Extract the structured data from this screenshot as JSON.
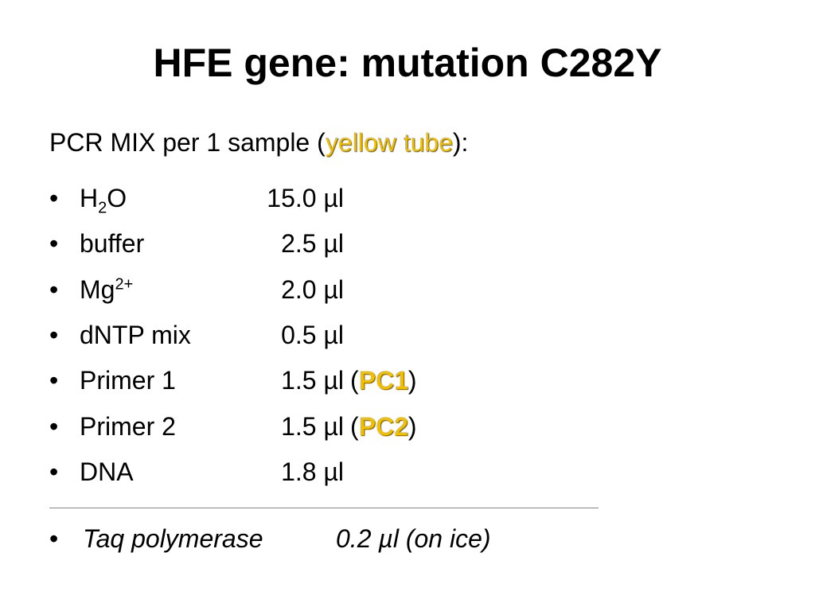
{
  "title": "HFE gene: mutation C282Y",
  "subtitle": {
    "before": "PCR MIX per 1 sample (",
    "highlight": "yellow tube",
    "after": "):"
  },
  "bullet": "•",
  "items": [
    {
      "name": [
        {
          "text": "H"
        },
        {
          "text": "2",
          "style": "sub"
        },
        {
          "text": "O"
        }
      ],
      "amount": "15.0 µl"
    },
    {
      "name": [
        {
          "text": "buffer"
        }
      ],
      "amount": "2.5 µl"
    },
    {
      "name": [
        {
          "text": "Mg"
        },
        {
          "text": "2+",
          "style": "sup"
        }
      ],
      "amount": "2.0 µl"
    },
    {
      "name": [
        {
          "text": "dNTP mix"
        }
      ],
      "amount": "0.5 µl"
    },
    {
      "name": [
        {
          "text": "Primer 1"
        }
      ],
      "amount": "1.5 µl",
      "note": {
        "open": "(",
        "highlight": "PC1",
        "close": ")"
      }
    },
    {
      "name": [
        {
          "text": "Primer 2"
        }
      ],
      "amount": "1.5 µl",
      "note": {
        "open": "(",
        "highlight": "PC2",
        "close": ")"
      }
    },
    {
      "name": [
        {
          "text": "DNA"
        }
      ],
      "amount": "1.8 µl"
    }
  ],
  "extra": {
    "name": "Taq polymerase",
    "amount": "0.2 µl (on ice)"
  }
}
